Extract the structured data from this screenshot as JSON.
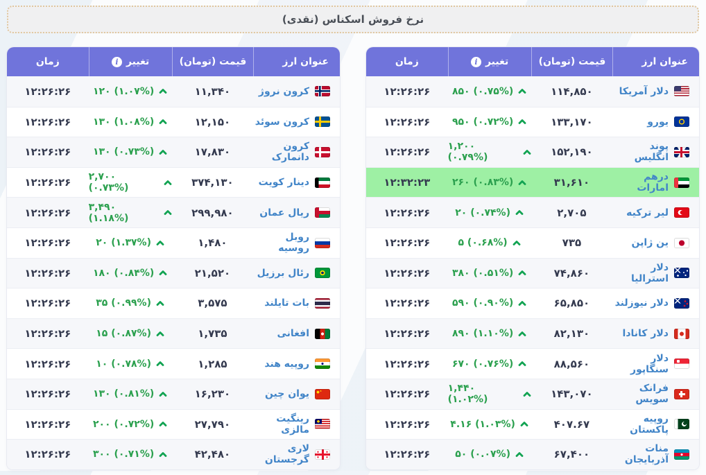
{
  "title": "نرخ فروش اسکناس (نقدی)",
  "columns": {
    "currency": "عنوان ارز",
    "price": "قیمت (تومان)",
    "change": "تغییر",
    "time": "زمان"
  },
  "colors": {
    "header_bg": "#7074db",
    "header_text": "#ffffff",
    "row_alt": "#f6f7fa",
    "row_border": "#ebedf3",
    "highlight_bg": "#9ef0a4",
    "change_green": "#2ba04e",
    "arrow_green": "#12a352",
    "name_blue": "#4285c8",
    "value_navy": "#343a4f",
    "title_bg": "#f0f0f1",
    "title_border": "#e0c69e"
  },
  "tables": [
    {
      "name": "major-currencies",
      "rows": [
        {
          "flag": "us",
          "currency": "دلار آمریکا",
          "price": "۱۱۴,۸۵۰",
          "change": "۸۵۰ (۰.۷۵%)",
          "direction": "up",
          "time": "۱۲:۲۶:۲۶"
        },
        {
          "flag": "eu",
          "currency": "یورو",
          "price": "۱۳۳,۱۷۰",
          "change": "۹۵۰ (۰.۷۲%)",
          "direction": "up",
          "time": "۱۲:۲۶:۲۶"
        },
        {
          "flag": "gb",
          "currency": "پوند انگلیس",
          "price": "۱۵۲,۱۹۰",
          "change": "۱,۲۰۰ (۰.۷۹%)",
          "direction": "up",
          "time": "۱۲:۲۶:۲۶"
        },
        {
          "flag": "ae",
          "currency": "درهم امارات",
          "price": "۳۱,۶۱۰",
          "change": "۲۶۰ (۰.۸۳%)",
          "direction": "up",
          "time": "۱۲:۳۲:۲۳",
          "highlighted": true
        },
        {
          "flag": "tr",
          "currency": "لیر ترکیه",
          "price": "۲,۷۰۵",
          "change": "۲۰ (۰.۷۴%)",
          "direction": "up",
          "time": "۱۲:۲۶:۲۶"
        },
        {
          "flag": "jp",
          "currency": "ین ژاپن",
          "price": "۷۳۵",
          "change": "۵ (۰.۶۸%)",
          "direction": "up",
          "time": "۱۲:۲۶:۲۶"
        },
        {
          "flag": "au",
          "currency": "دلار استرالیا",
          "price": "۷۴,۸۶۰",
          "change": "۳۸۰ (۰.۵۱%)",
          "direction": "up",
          "time": "۱۲:۲۶:۲۶"
        },
        {
          "flag": "nz",
          "currency": "دلار نیوزلند",
          "price": "۶۵,۸۵۰",
          "change": "۵۹۰ (۰.۹۰%)",
          "direction": "up",
          "time": "۱۲:۲۶:۲۶"
        },
        {
          "flag": "ca",
          "currency": "دلار کانادا",
          "price": "۸۲,۱۳۰",
          "change": "۸۹۰ (۱.۱۰%)",
          "direction": "up",
          "time": "۱۲:۲۶:۲۶"
        },
        {
          "flag": "sg",
          "currency": "دلار سنگاپور",
          "price": "۸۸,۵۶۰",
          "change": "۶۷۰ (۰.۷۶%)",
          "direction": "up",
          "time": "۱۲:۲۶:۲۶"
        },
        {
          "flag": "ch",
          "currency": "فرانک سویس",
          "price": "۱۴۳,۰۷۰",
          "change": "۱,۴۴۰ (۱.۰۲%)",
          "direction": "up",
          "time": "۱۲:۲۶:۲۶"
        },
        {
          "flag": "pk",
          "currency": "روپیه پاکستان",
          "price": "۴۰۷.۶۷",
          "change": "۴.۱۶ (۱.۰۳%)",
          "direction": "up",
          "time": "۱۲:۲۶:۲۶"
        },
        {
          "flag": "az",
          "currency": "منات آذربایجان",
          "price": "۶۷,۴۰۰",
          "change": "۵۰ (۰.۰۷%)",
          "direction": "up",
          "time": "۱۲:۲۶:۲۶"
        }
      ]
    },
    {
      "name": "other-currencies",
      "rows": [
        {
          "flag": "no",
          "currency": "کرون نروژ",
          "price": "۱۱,۳۴۰",
          "change": "۱۲۰ (۱.۰۷%)",
          "direction": "up",
          "time": "۱۲:۲۶:۲۶"
        },
        {
          "flag": "se",
          "currency": "کرون سوئد",
          "price": "۱۲,۱۵۰",
          "change": "۱۳۰ (۱.۰۸%)",
          "direction": "up",
          "time": "۱۲:۲۶:۲۶"
        },
        {
          "flag": "dk",
          "currency": "کرون دانمارک",
          "price": "۱۷,۸۳۰",
          "change": "۱۳۰ (۰.۷۳%)",
          "direction": "up",
          "time": "۱۲:۲۶:۲۶"
        },
        {
          "flag": "kw",
          "currency": "دینار کویت",
          "price": "۳۷۴,۱۳۰",
          "change": "۲,۷۰۰ (۰.۷۳%)",
          "direction": "up",
          "time": "۱۲:۲۶:۲۶"
        },
        {
          "flag": "om",
          "currency": "ریال عمان",
          "price": "۲۹۹,۹۸۰",
          "change": "۳,۴۹۰ (۱.۱۸%)",
          "direction": "up",
          "time": "۱۲:۲۶:۲۶"
        },
        {
          "flag": "ru",
          "currency": "روبل روسیه",
          "price": "۱,۴۸۰",
          "change": "۲۰ (۱.۳۷%)",
          "direction": "up",
          "time": "۱۲:۲۶:۲۶"
        },
        {
          "flag": "br",
          "currency": "رئال برزیل",
          "price": "۲۱,۵۲۰",
          "change": "۱۸۰ (۰.۸۴%)",
          "direction": "up",
          "time": "۱۲:۲۶:۲۶"
        },
        {
          "flag": "th",
          "currency": "بات تایلند",
          "price": "۳,۵۷۵",
          "change": "۳۵ (۰.۹۹%)",
          "direction": "up",
          "time": "۱۲:۲۶:۲۶"
        },
        {
          "flag": "af",
          "currency": "افغانی",
          "price": "۱,۷۳۵",
          "change": "۱۵ (۰.۸۷%)",
          "direction": "up",
          "time": "۱۲:۲۶:۲۶"
        },
        {
          "flag": "in",
          "currency": "روپیه هند",
          "price": "۱,۲۸۵",
          "change": "۱۰ (۰.۷۸%)",
          "direction": "up",
          "time": "۱۲:۲۶:۲۶"
        },
        {
          "flag": "cn",
          "currency": "یوان چین",
          "price": "۱۶,۲۳۰",
          "change": "۱۳۰ (۰.۸۱%)",
          "direction": "up",
          "time": "۱۲:۲۶:۲۶"
        },
        {
          "flag": "my",
          "currency": "رینگیت مالزی",
          "price": "۲۷,۷۹۰",
          "change": "۲۰۰ (۰.۷۲%)",
          "direction": "up",
          "time": "۱۲:۲۶:۲۶"
        },
        {
          "flag": "ge",
          "currency": "لاری گرجستان",
          "price": "۴۲,۴۸۰",
          "change": "۳۰۰ (۰.۷۱%)",
          "direction": "up",
          "time": "۱۲:۲۶:۲۶"
        }
      ]
    }
  ]
}
